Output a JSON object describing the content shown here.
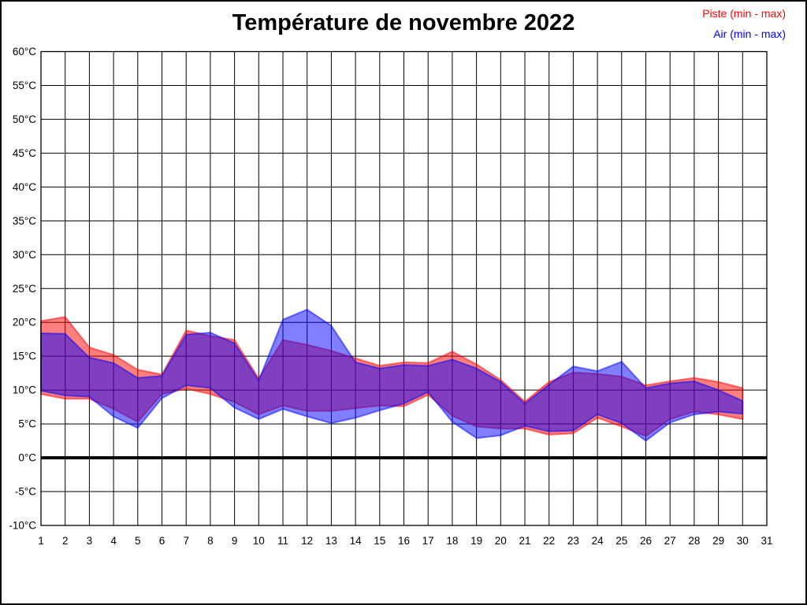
{
  "chart_data": {
    "type": "area",
    "title": "Température de novembre 2022",
    "legend_position": "top-right",
    "grid": true,
    "grid_color": "#000000",
    "text_color": "#000000",
    "fill_opacity": 0.5,
    "xlim": [
      1,
      31
    ],
    "ylim": [
      -10,
      60
    ],
    "y_tick_step": 5,
    "y_tick_labels": [
      "60°C",
      "55°C",
      "50°C",
      "45°C",
      "40°C",
      "35°C",
      "30°C",
      "25°C",
      "20°C",
      "15°C",
      "10°C",
      "5°C",
      "0°C",
      "-5°C",
      "-10°C"
    ],
    "x_ticks": [
      1,
      2,
      3,
      4,
      5,
      6,
      7,
      8,
      9,
      10,
      11,
      12,
      13,
      14,
      15,
      16,
      17,
      18,
      19,
      20,
      21,
      22,
      23,
      24,
      25,
      26,
      27,
      28,
      29,
      30,
      31
    ],
    "zero_line": true,
    "x": [
      1,
      2,
      3,
      4,
      5,
      6,
      7,
      8,
      9,
      10,
      11,
      12,
      13,
      14,
      15,
      16,
      17,
      18,
      19,
      20,
      21,
      22,
      23,
      24,
      25,
      26,
      27,
      28,
      29,
      30
    ],
    "series": [
      {
        "name": "Piste (min - max)",
        "color": "#ff0000",
        "min": [
          9.4,
          8.7,
          8.7,
          7.2,
          5.3,
          9.4,
          10.2,
          9.4,
          8.2,
          6.4,
          7.7,
          6.9,
          6.9,
          7.3,
          7.7,
          7.6,
          9.3,
          6.2,
          4.6,
          4.3,
          4.3,
          3.4,
          3.6,
          5.9,
          4.6,
          3.2,
          5.7,
          6.8,
          6.4,
          5.7
        ],
        "max": [
          20.2,
          20.8,
          16.3,
          15.2,
          13.0,
          12.3,
          18.8,
          18.0,
          17.4,
          11.7,
          17.4,
          16.7,
          15.8,
          14.7,
          13.6,
          14.1,
          14.0,
          15.7,
          13.8,
          11.5,
          8.3,
          11.2,
          12.6,
          12.4,
          12.0,
          10.7,
          11.3,
          11.8,
          11.2,
          10.3
        ]
      },
      {
        "name": "Air (min - max)",
        "color": "#0000ff",
        "min": [
          9.9,
          9.2,
          9.0,
          6.1,
          4.4,
          8.8,
          10.7,
          10.3,
          7.4,
          5.7,
          7.2,
          6.1,
          5.1,
          5.9,
          7.0,
          8.0,
          9.7,
          5.3,
          2.9,
          3.3,
          4.7,
          3.9,
          4.0,
          6.4,
          5.1,
          2.5,
          5.2,
          6.4,
          6.8,
          6.5
        ],
        "max": [
          18.4,
          18.3,
          14.8,
          14.0,
          11.8,
          12.1,
          18.2,
          18.5,
          16.9,
          11.4,
          20.4,
          21.9,
          19.5,
          14.1,
          13.2,
          13.7,
          13.6,
          14.5,
          13.2,
          11.2,
          8.0,
          10.8,
          13.5,
          12.8,
          14.2,
          10.3,
          11.0,
          11.3,
          10.0,
          8.4
        ]
      }
    ]
  }
}
